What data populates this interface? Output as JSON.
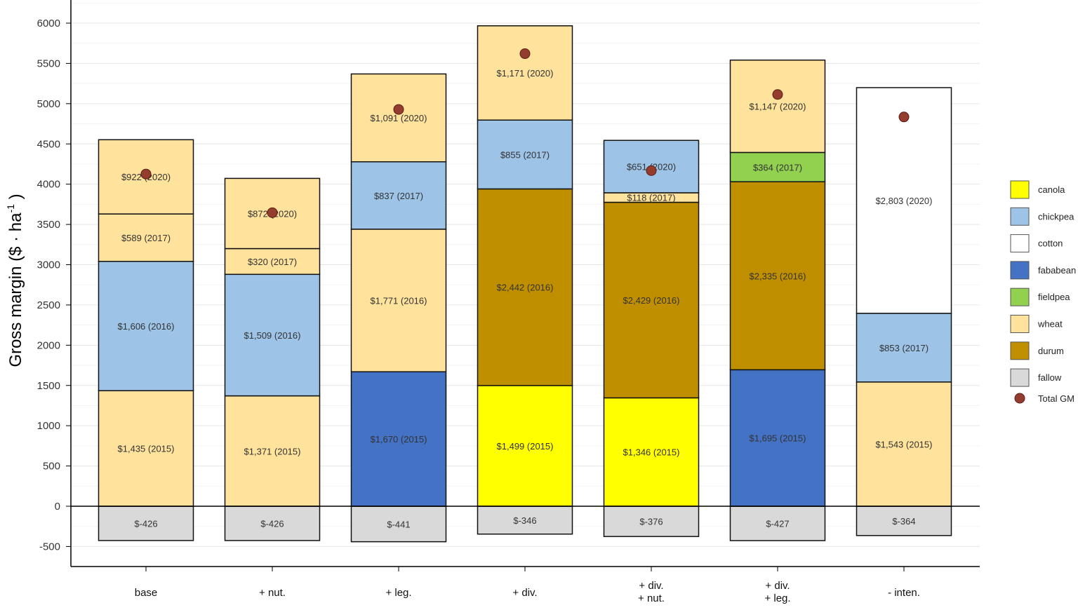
{
  "chart_data": {
    "type": "bar",
    "stacked": true,
    "title": "",
    "xlabel": "",
    "ylabel": "Gross margin ($ · ha",
    "ylabel_superscript": "-1",
    "ylabel_end": " )",
    "ylim": [
      -500,
      6000
    ],
    "yticks": [
      -500,
      0,
      500,
      1000,
      1500,
      2000,
      2500,
      3000,
      3500,
      4000,
      4500,
      5000,
      5500,
      6000
    ],
    "grid": true,
    "legend_position": "right",
    "categories": [
      {
        "lines": [
          "base"
        ]
      },
      {
        "lines": [
          "+ nut."
        ]
      },
      {
        "lines": [
          "+ leg."
        ]
      },
      {
        "lines": [
          "+ div."
        ]
      },
      {
        "lines": [
          "+ div.",
          "+ nut."
        ]
      },
      {
        "lines": [
          "+ div.",
          "+ leg."
        ]
      },
      {
        "lines": [
          "- inten."
        ]
      }
    ],
    "colors": {
      "canola": "#FFFF00",
      "chickpea": "#9DC3E6",
      "cotton": "#FFFFFF",
      "fababean": "#4472C4",
      "fieldpea": "#92D050",
      "wheat": "#FFE29C",
      "durum": "#BF8F00",
      "fallow": "#D9D9D9",
      "total": "#943C2E"
    },
    "legend": [
      {
        "key": "canola",
        "label": "canola"
      },
      {
        "key": "chickpea",
        "label": "chickpea"
      },
      {
        "key": "cotton",
        "label": "cotton"
      },
      {
        "key": "fababean",
        "label": "fababean"
      },
      {
        "key": "fieldpea",
        "label": "fieldpea"
      },
      {
        "key": "wheat",
        "label": "wheat"
      },
      {
        "key": "durum",
        "label": "durum"
      },
      {
        "key": "fallow",
        "label": "fallow"
      },
      {
        "key": "total",
        "label": "Total GM",
        "marker": "point"
      }
    ],
    "stacks": [
      {
        "negative": {
          "crop": "fallow",
          "value": -426,
          "label": "$-426"
        },
        "segments": [
          {
            "crop": "wheat",
            "value": 1435,
            "label": "$1,435 (2015)"
          },
          {
            "crop": "chickpea",
            "value": 1606,
            "label": "$1,606 (2016)"
          },
          {
            "crop": "wheat",
            "value": 589,
            "label": "$589 (2017)"
          },
          {
            "crop": "wheat",
            "value": 922,
            "label": "$922 (2020)"
          }
        ],
        "total": 4126
      },
      {
        "negative": {
          "crop": "fallow",
          "value": -426,
          "label": "$-426"
        },
        "segments": [
          {
            "crop": "wheat",
            "value": 1371,
            "label": "$1,371 (2015)"
          },
          {
            "crop": "chickpea",
            "value": 1509,
            "label": "$1,509 (2016)"
          },
          {
            "crop": "wheat",
            "value": 320,
            "label": "$320 (2017)"
          },
          {
            "crop": "wheat",
            "value": 872,
            "label": "$872 (2020)"
          }
        ],
        "total": 3646
      },
      {
        "negative": {
          "crop": "fallow",
          "value": -441,
          "label": "$-441"
        },
        "segments": [
          {
            "crop": "fababean",
            "value": 1670,
            "label": "$1,670 (2015)"
          },
          {
            "crop": "wheat",
            "value": 1771,
            "label": "$1,771 (2016)"
          },
          {
            "crop": "chickpea",
            "value": 837,
            "label": "$837 (2017)"
          },
          {
            "crop": "wheat",
            "value": 1091,
            "label": "$1,091 (2020)"
          }
        ],
        "total": 4928
      },
      {
        "negative": {
          "crop": "fallow",
          "value": -346,
          "label": "$-346"
        },
        "segments": [
          {
            "crop": "canola",
            "value": 1499,
            "label": "$1,499 (2015)"
          },
          {
            "crop": "durum",
            "value": 2442,
            "label": "$2,442 (2016)"
          },
          {
            "crop": "chickpea",
            "value": 855,
            "label": "$855 (2017)"
          },
          {
            "crop": "wheat",
            "value": 1171,
            "label": "$1,171 (2020)"
          }
        ],
        "total": 5621
      },
      {
        "negative": {
          "crop": "fallow",
          "value": -376,
          "label": "$-376"
        },
        "segments": [
          {
            "crop": "canola",
            "value": 1346,
            "label": "$1,346 (2015)"
          },
          {
            "crop": "durum",
            "value": 2429,
            "label": "$2,429 (2016)"
          },
          {
            "crop": "wheat",
            "value": 118,
            "label": "$118 (2017)"
          },
          {
            "crop": "chickpea",
            "value": 651,
            "label": "$651 (2020)"
          }
        ],
        "total": 4168
      },
      {
        "negative": {
          "crop": "fallow",
          "value": -427,
          "label": "$-427"
        },
        "segments": [
          {
            "crop": "fababean",
            "value": 1695,
            "label": "$1,695 (2015)"
          },
          {
            "crop": "durum",
            "value": 2335,
            "label": "$2,335 (2016)"
          },
          {
            "crop": "fieldpea",
            "value": 364,
            "label": "$364 (2017)"
          },
          {
            "crop": "wheat",
            "value": 1147,
            "label": "$1,147 (2020)"
          }
        ],
        "total": 5114
      },
      {
        "negative": {
          "crop": "fallow",
          "value": -364,
          "label": "$-364"
        },
        "segments": [
          {
            "crop": "wheat",
            "value": 1543,
            "label": "$1,543 (2015)"
          },
          {
            "crop": "chickpea",
            "value": 853,
            "label": "$853 (2017)"
          },
          {
            "crop": "cotton",
            "value": 2803,
            "label": "$2,803 (2020)"
          }
        ],
        "total": 4835
      }
    ]
  }
}
